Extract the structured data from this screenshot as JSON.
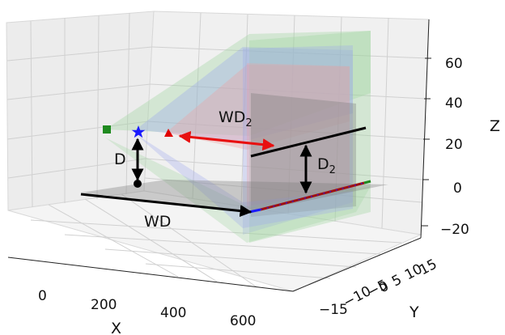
{
  "axes": {
    "x_label": "X",
    "y_label": "Y",
    "z_label": "Z",
    "x_ticks": [
      "0",
      "200",
      "400",
      "600"
    ],
    "y_ticks": [
      "−15",
      "−10",
      "−5",
      "0",
      "5",
      "10",
      "15"
    ],
    "z_ticks": [
      "60",
      "40",
      "20",
      "0",
      "−20"
    ],
    "grid": true
  },
  "annotations": {
    "wd": "WD",
    "wd2_base": "WD",
    "wd2_sub": "2",
    "d": "D",
    "d2_base": "D",
    "d2_sub": "2"
  },
  "markers": {
    "square_color": "#1f8a1f",
    "star_color": "#1a1aff",
    "triangle_color": "#e00000",
    "dot_color": "#000000"
  },
  "colors": {
    "red_arrow": "#e81010",
    "black_arrow": "#000000",
    "green_plane": "#9fd59f",
    "blue_plane": "#9aa6ef",
    "red_plane": "#eda0a0",
    "gray_plane": "#7c7c7c"
  }
}
